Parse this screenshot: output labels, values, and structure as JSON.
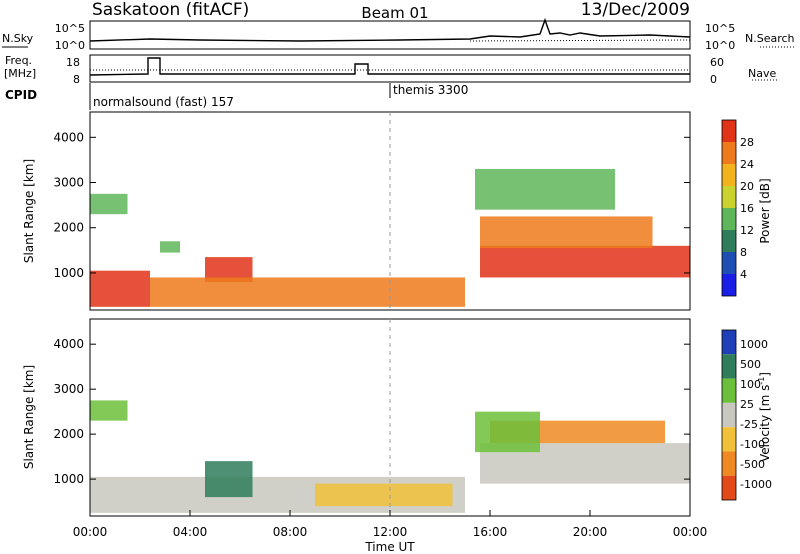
{
  "header": {
    "station": "Saskatoon (fitACF)",
    "beam": "Beam 01",
    "date": "13/Dec/2009"
  },
  "noise_panel": {
    "left_label": "N.Sky",
    "left_ticks": [
      "10^5",
      "10^0"
    ],
    "right_ticks": [
      "10^5",
      "10^0"
    ],
    "right_label": "N.Search"
  },
  "freq_panel": {
    "left_label_line1": "Freq.",
    "left_label_line2": "[MHz]",
    "left_ticks": [
      "18",
      "8"
    ],
    "right_ticks": [
      "60",
      "0"
    ],
    "right_label": "Nave"
  },
  "cpid_panel": {
    "label": "CPID",
    "segments": [
      {
        "start_hour": 0.0,
        "text": "normalsound (fast) 157"
      },
      {
        "start_hour": 12.0,
        "text": "themis 3300"
      }
    ]
  },
  "chart_data": [
    {
      "type": "heatmap",
      "panel": "power",
      "x_range_hours": [
        0,
        24
      ],
      "ylabel": "Slant Range [km]",
      "ylim": [
        180,
        4560
      ],
      "yticks": [
        1000,
        2000,
        3000,
        4000
      ],
      "colorbar": {
        "label": "Power [dB]",
        "ticks": [
          4,
          8,
          12,
          16,
          20,
          24,
          28
        ],
        "levels": [
          {
            "range": [
              0,
              4
            ],
            "color": "#1a1ee6"
          },
          {
            "range": [
              4,
              8
            ],
            "color": "#1f4fb3"
          },
          {
            "range": [
              8,
              12
            ],
            "color": "#2f7d5a"
          },
          {
            "range": [
              12,
              16
            ],
            "color": "#5fb65a"
          },
          {
            "range": [
              16,
              20
            ],
            "color": "#c9d22e"
          },
          {
            "range": [
              20,
              24
            ],
            "color": "#f3b31f"
          },
          {
            "range": [
              24,
              28
            ],
            "color": "#ef7a1c"
          },
          {
            "range": [
              28,
              32
            ],
            "color": "#e03317"
          }
        ]
      },
      "features": [
        {
          "t": [
            0.0,
            2.4
          ],
          "r": [
            250,
            1050
          ],
          "level": "#e03317"
        },
        {
          "t": [
            0.0,
            1.5
          ],
          "r": [
            2300,
            2750
          ],
          "level": "#5fb65a"
        },
        {
          "t": [
            2.8,
            3.6
          ],
          "r": [
            1450,
            1700
          ],
          "level": "#5fb65a"
        },
        {
          "t": [
            4.6,
            6.5
          ],
          "r": [
            800,
            1350
          ],
          "level": "#e03317"
        },
        {
          "t": [
            2.4,
            15.0
          ],
          "r": [
            250,
            900
          ],
          "level": "#ef7a1c"
        },
        {
          "t": [
            15.6,
            24.0
          ],
          "r": [
            900,
            1600
          ],
          "level": "#e03317"
        },
        {
          "t": [
            15.6,
            22.5
          ],
          "r": [
            1550,
            2250
          ],
          "level": "#ef7a1c"
        },
        {
          "t": [
            15.4,
            21.0
          ],
          "r": [
            2400,
            3300
          ],
          "level": "#5fb65a"
        }
      ]
    },
    {
      "type": "heatmap",
      "panel": "velocity",
      "x_range_hours": [
        0,
        24
      ],
      "ylabel": "Slant Range [km]",
      "ylim": [
        180,
        4560
      ],
      "yticks": [
        1000,
        2000,
        3000,
        4000
      ],
      "xticks": [
        "00:00",
        "04:00",
        "08:00",
        "12:00",
        "16:00",
        "20:00",
        "00:00"
      ],
      "xlabel": "Time UT",
      "colorbar": {
        "label": "Velocity [m s-1]",
        "ticks": [
          1000,
          500,
          100,
          25,
          -25,
          -100,
          -500,
          -1000
        ],
        "levels": [
          {
            "range": [
              500,
              1000
            ],
            "color": "#1f3fb8"
          },
          {
            "range": [
              100,
              500
            ],
            "color": "#2f7d5a"
          },
          {
            "range": [
              25,
              100
            ],
            "color": "#6cbf3a"
          },
          {
            "range": [
              -25,
              25
            ],
            "color": "#c8c8c0"
          },
          {
            "range": [
              -100,
              -25
            ],
            "color": "#f2c13a"
          },
          {
            "range": [
              -500,
              -100
            ],
            "color": "#ef8a22"
          },
          {
            "range": [
              -1000,
              -500
            ],
            "color": "#e24a1a"
          }
        ]
      },
      "features": [
        {
          "t": [
            0.0,
            15.0
          ],
          "r": [
            250,
            1050
          ],
          "level": "#c8c8c0"
        },
        {
          "t": [
            0.0,
            1.5
          ],
          "r": [
            2300,
            2750
          ],
          "level": "#6cbf3a"
        },
        {
          "t": [
            4.6,
            6.5
          ],
          "r": [
            600,
            1400
          ],
          "level": "#2f7d5a"
        },
        {
          "t": [
            9.0,
            14.5
          ],
          "r": [
            400,
            900
          ],
          "level": "#f2c13a"
        },
        {
          "t": [
            15.6,
            24.0
          ],
          "r": [
            900,
            1800
          ],
          "level": "#c8c8c0"
        },
        {
          "t": [
            16.0,
            23.0
          ],
          "r": [
            1800,
            2300
          ],
          "level": "#ef8a22"
        },
        {
          "t": [
            15.4,
            18.0
          ],
          "r": [
            1600,
            2500
          ],
          "level": "#6cbf3a"
        }
      ]
    }
  ],
  "xaxis": {
    "ticks": [
      "00:00",
      "04:00",
      "08:00",
      "12:00",
      "16:00",
      "20:00",
      "00:00"
    ],
    "label": "Time UT"
  },
  "labels": {
    "y_power": "Slant Range [km]",
    "y_velocity": "Slant Range [km]",
    "cb_power_label": "Power [dB]",
    "cb_velocity_label": "Velocity [m s",
    "cb_velocity_exp": "-1",
    "cb_velocity_tail": "]"
  }
}
